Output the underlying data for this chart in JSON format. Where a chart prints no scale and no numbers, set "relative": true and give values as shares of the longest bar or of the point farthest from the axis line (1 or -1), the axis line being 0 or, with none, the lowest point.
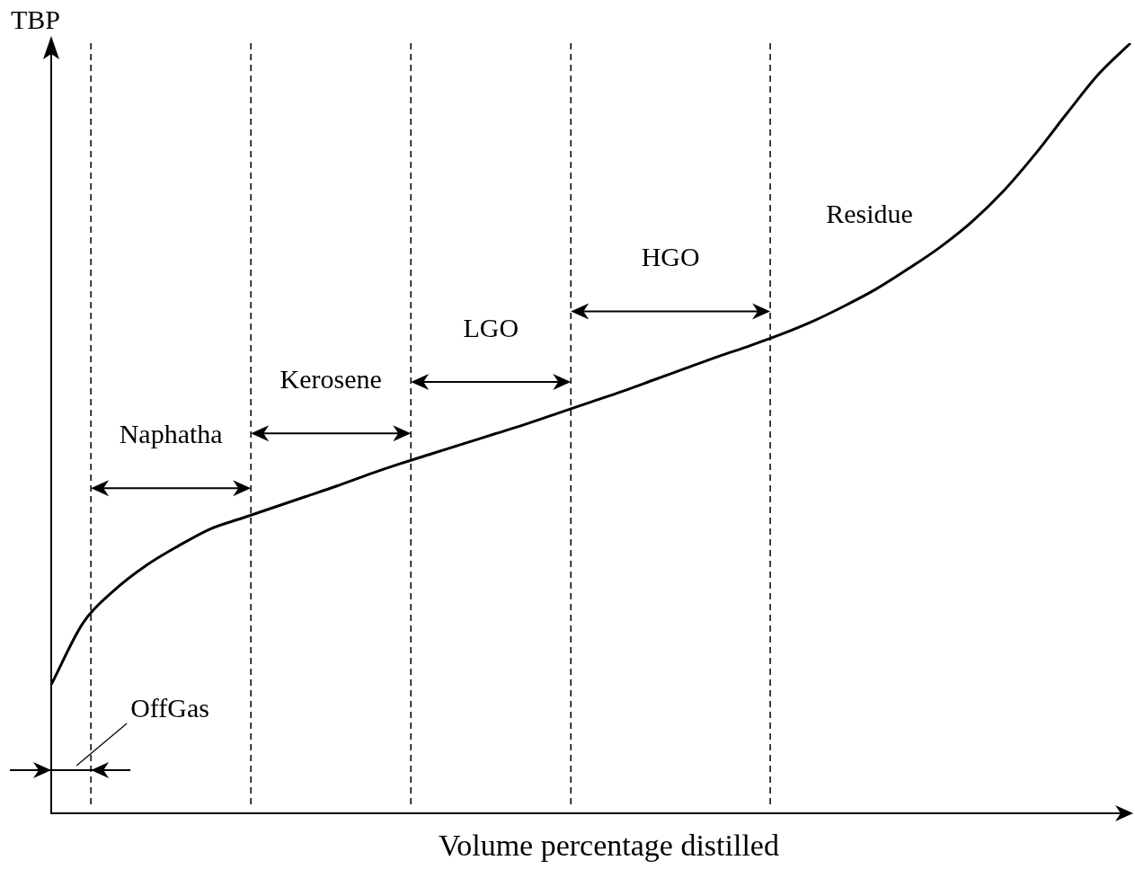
{
  "chart_data": {
    "type": "line",
    "relative": true,
    "xlabel": "Volume percentage distilled",
    "ylabel": "TBP",
    "categories": [
      null,
      null,
      null,
      null,
      null,
      null,
      null,
      null,
      null,
      null,
      null,
      null,
      null,
      null,
      null,
      null,
      null,
      null,
      null,
      null,
      null,
      null,
      null,
      null,
      null,
      null,
      null,
      null,
      null,
      null,
      null,
      null,
      null,
      null,
      null
    ],
    "series": [
      {
        "color": "#000000",
        "values": [
          0.167,
          0.247,
          0.29,
          0.322,
          0.347,
          0.369,
          0.383,
          0.397,
          0.411,
          0.425,
          0.44,
          0.454,
          0.467,
          0.48,
          0.493,
          0.506,
          0.52,
          0.534,
          0.548,
          0.563,
          0.578,
          0.593,
          0.607,
          0.622,
          0.639,
          0.659,
          0.681,
          0.707,
          0.735,
          0.768,
          0.808,
          0.856,
          0.909,
          0.96,
          1.0
        ]
      }
    ],
    "annotations": [
      "OffGas",
      "Naphatha",
      "Kerosene",
      "LGO",
      "HGO",
      "Residue"
    ],
    "grid": false,
    "legend": false,
    "marker": "none",
    "line_style": "solid"
  }
}
